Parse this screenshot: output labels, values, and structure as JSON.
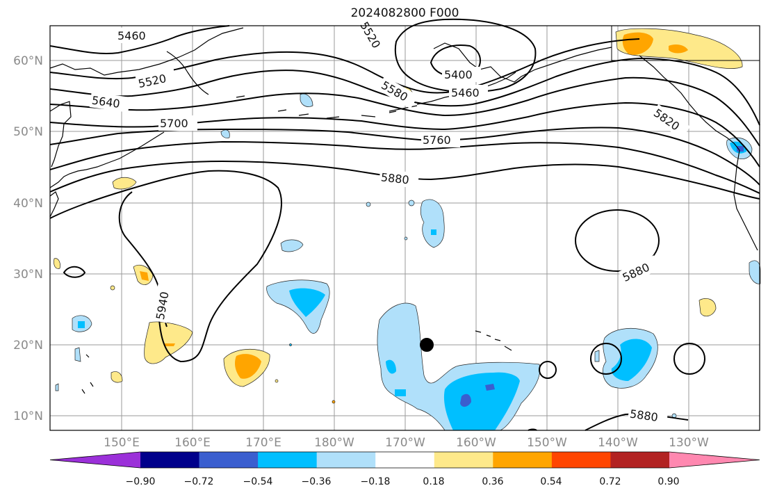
{
  "title": "2024082800 F000",
  "lat_labels": [
    "60°N",
    "50°N",
    "40°N",
    "30°N",
    "20°N",
    "10°N"
  ],
  "lon_labels": [
    "150°E",
    "160°E",
    "170°E",
    "180°W",
    "170°W",
    "160°W",
    "150°W",
    "140°W",
    "130°W"
  ],
  "contour_labels": [
    "5460",
    "5520",
    "5520",
    "5400",
    "5460",
    "5580",
    "5640",
    "5700",
    "5760",
    "5820",
    "5880",
    "5880",
    "5880",
    "5940"
  ],
  "colorbar": {
    "ticks": [
      "−0.90",
      "−0.72",
      "−0.54",
      "−0.36",
      "−0.18",
      "0.18",
      "0.36",
      "0.54",
      "0.72",
      "0.90"
    ],
    "colors": [
      "#9b30d9",
      "#00008b",
      "#3a5ecf",
      "#00bfff",
      "#b0e0fa",
      "#ffffff",
      "#fee98a",
      "#ffa500",
      "#ff4500",
      "#b22222",
      "#ff88b0"
    ]
  }
}
